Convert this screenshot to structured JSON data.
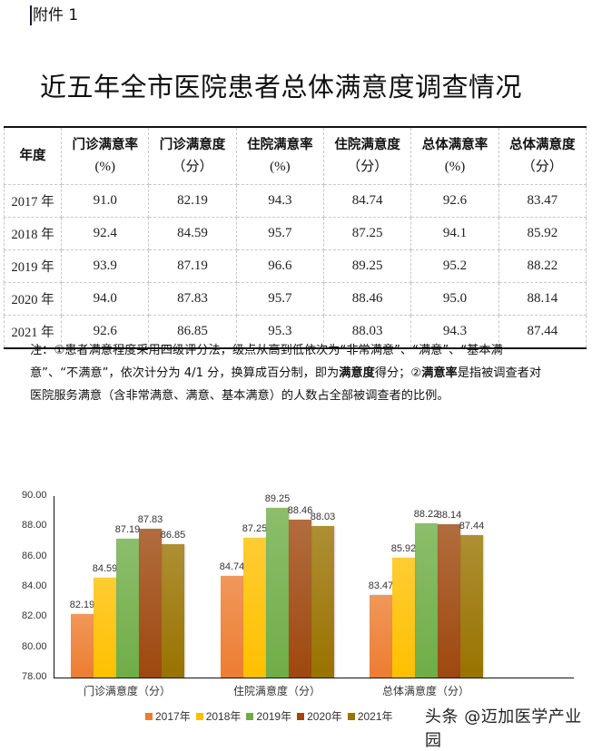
{
  "attachment_label": "附件 1",
  "title": "近五年全市医院患者总体满意度调查情况",
  "table": {
    "headers": [
      {
        "name": "年度",
        "unit": ""
      },
      {
        "name": "门诊满意率",
        "unit": "(%)"
      },
      {
        "name": "门诊满意度",
        "unit": "（分）"
      },
      {
        "name": "住院满意率",
        "unit": "(%)"
      },
      {
        "name": "住院满意度",
        "unit": "（分）"
      },
      {
        "name": "总体满意率",
        "unit": "(%)"
      },
      {
        "name": "总体满意度",
        "unit": "（分）"
      }
    ],
    "rows": [
      [
        "2017 年",
        "91.0",
        "82.19",
        "94.3",
        "84.74",
        "92.6",
        "83.47"
      ],
      [
        "2018 年",
        "92.4",
        "84.59",
        "95.7",
        "87.25",
        "94.1",
        "85.92"
      ],
      [
        "2019 年",
        "93.9",
        "87.19",
        "96.6",
        "89.25",
        "95.2",
        "88.22"
      ],
      [
        "2020 年",
        "94.0",
        "87.83",
        "95.7",
        "88.46",
        "95.0",
        "88.14"
      ],
      [
        "2021 年",
        "92.6",
        "86.85",
        "95.3",
        "88.03",
        "94.3",
        "87.44"
      ]
    ]
  },
  "note": {
    "part1": "注：①患者满意程度采用四级评分法，级点从高到低依次为“非常满意”、“满意”、“基本满意”、“不满意”，依次计分为 4/1 分，换算成百分制，即为",
    "bold1": "满意度",
    "part2": "得分；②",
    "bold2": "满意率",
    "part3": "是指被调查者对医院服务满意（含非常满意、满意、基本满意）的人数占全部被调查者的比例。"
  },
  "chart_data": {
    "type": "bar",
    "title": "",
    "xlabel": "",
    "ylabel": "",
    "ylim": [
      78,
      90
    ],
    "yticks": [
      "90.00",
      "88.00",
      "86.00",
      "84.00",
      "82.00",
      "80.00",
      "78.00"
    ],
    "categories": [
      "门诊满意度（分）",
      "住院满意度（分）",
      "总体满意度（分）"
    ],
    "series": [
      {
        "name": "2017年",
        "color": "#ED7D31",
        "values": [
          82.19,
          84.74,
          83.47
        ]
      },
      {
        "name": "2018年",
        "color": "#FFC000",
        "values": [
          84.59,
          87.25,
          85.92
        ]
      },
      {
        "name": "2019年",
        "color": "#70AD47",
        "values": [
          87.19,
          89.25,
          88.22
        ]
      },
      {
        "name": "2020年",
        "color": "#9E480E",
        "values": [
          87.83,
          88.46,
          88.14
        ]
      },
      {
        "name": "2021年",
        "color": "#997300",
        "values": [
          86.85,
          88.03,
          87.44
        ]
      }
    ],
    "legend_position": "bottom",
    "grid": false
  },
  "watermark": "头条 @迈加医学产业园"
}
